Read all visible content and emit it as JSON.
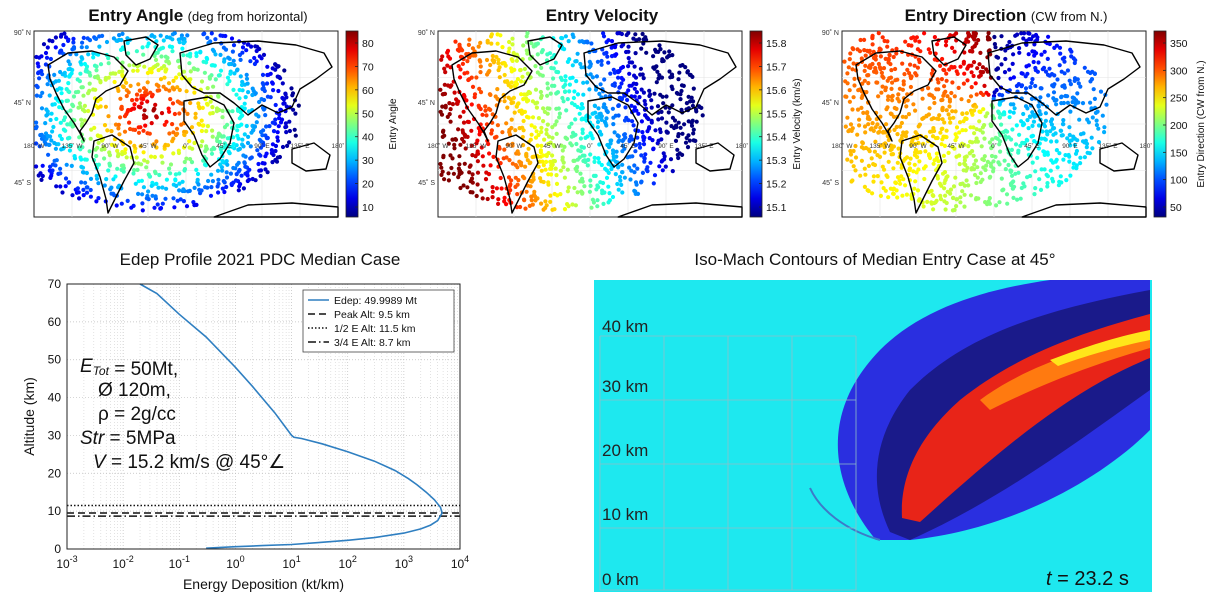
{
  "maps": [
    {
      "key": "angle",
      "title": "Entry Angle",
      "subtitle": "(deg from horizontal)",
      "colorbar_label": "Entry Angle",
      "colorbar_ticks": [
        "80",
        "70",
        "60",
        "50",
        "40",
        "30",
        "20",
        "10"
      ],
      "lat_labels": [
        "90˚ N",
        "45˚ N",
        "45˚ S"
      ],
      "lon_labels": [
        "180˚ W",
        "135˚ W",
        "90˚ W",
        "45˚ W",
        "0˚",
        "45˚ E",
        "90˚ E",
        "135˚ E",
        "180˚"
      ],
      "colormap": "jet",
      "colors": {
        "hot": "#b50000",
        "cold": "#0a0aa8"
      }
    },
    {
      "key": "velocity",
      "title": "Entry Velocity",
      "subtitle": "",
      "colorbar_label": "Entry Velocity (km/s)",
      "colorbar_ticks": [
        "15.8",
        "15.7",
        "15.6",
        "15.5",
        "15.4",
        "15.3",
        "15.2",
        "15.1"
      ],
      "lat_labels": [
        "90˚ N",
        "45˚ N",
        "45˚ S"
      ],
      "lon_labels": [
        "180˚ W",
        "135˚ W",
        "90˚ W",
        "45˚ W",
        "0˚",
        "45˚ E",
        "90˚ E",
        "135˚ E",
        "180˚"
      ],
      "colormap": "jet",
      "colors": {
        "hot": "#9b0000",
        "cold": "#0000a0"
      }
    },
    {
      "key": "direction",
      "title": "Entry Direction",
      "subtitle": "(CW from N.)",
      "colorbar_label": "Entry Direction (CW from N.)",
      "colorbar_ticks": [
        "350",
        "300",
        "250",
        "200",
        "150",
        "100",
        "50"
      ],
      "lat_labels": [
        "90˚ N",
        "45˚ N",
        "45˚ S"
      ],
      "lon_labels": [
        "180˚ W",
        "135˚ W",
        "90˚ W",
        "45˚ W",
        "0˚",
        "45˚ E",
        "90˚ E",
        "135˚ E",
        "180˚"
      ],
      "colormap": "jet",
      "colors": {
        "hot": "#a00000",
        "cold": "#0000a0"
      }
    }
  ],
  "edep": {
    "title": "Edep Profile 2021 PDC Median Case",
    "legend": [
      {
        "label": "Edep: 49.9989 Mt",
        "style": "solid"
      },
      {
        "label": "Peak Alt: 9.5 km",
        "style": "dashed"
      },
      {
        "label": "1/2 E Alt: 11.5 km",
        "style": "dotted"
      },
      {
        "label": "3/4 E Alt: 8.7 km",
        "style": "dashdot"
      }
    ],
    "annotation": {
      "etot_sym": "E",
      "etot_sub": "Tot",
      "etot_val": " = 50Mt,",
      "diam": "Ø 120m,",
      "rho": "ρ = 2g/cc",
      "str_sym": "Str",
      "str_val": " = 5MPa",
      "v_sym": "V",
      "v_val": " = 15.2 km/s @ 45°∠"
    },
    "colors": {
      "line": "#2f7fc1",
      "refline": "#111111"
    }
  },
  "chart_data": [
    {
      "type": "line",
      "title": "Edep Profile 2021 PDC Median Case",
      "xlabel": "Energy Deposition (kt/km)",
      "ylabel": "Altitude (km)",
      "xscale": "log",
      "xlim": [
        0.001,
        10000
      ],
      "ylim": [
        0,
        70
      ],
      "x_ticks": [
        0.001,
        0.01,
        0.1,
        1,
        10,
        100,
        1000,
        10000
      ],
      "x_tick_labels": [
        {
          "base": "10",
          "exp": "-3"
        },
        {
          "base": "10",
          "exp": "-2"
        },
        {
          "base": "10",
          "exp": "-1"
        },
        {
          "base": "10",
          "exp": "0"
        },
        {
          "base": "10",
          "exp": "1"
        },
        {
          "base": "10",
          "exp": "2"
        },
        {
          "base": "10",
          "exp": "3"
        },
        {
          "base": "10",
          "exp": "4"
        }
      ],
      "y_ticks": [
        "0",
        "10",
        "20",
        "30",
        "40",
        "50",
        "60",
        "70"
      ],
      "grid": true,
      "legend_position": "top-right",
      "series": [
        {
          "name": "Edep: 49.9989 Mt",
          "x": [
            0.3,
            1,
            3,
            10,
            30,
            100,
            300,
            1000,
            2000,
            3000,
            4000,
            4800,
            4500,
            3500,
            2500,
            1700,
            1200,
            700,
            300,
            100,
            35,
            15,
            11,
            10,
            5,
            2,
            1,
            0.3,
            0.1,
            0.04,
            0.02
          ],
          "y": [
            0.2,
            0.6,
            0.9,
            1.2,
            1.7,
            2.3,
            3.0,
            4.2,
            5.3,
            6.3,
            7.5,
            9.5,
            11.0,
            13.0,
            15.0,
            17.0,
            18.6,
            20.7,
            23.2,
            25.7,
            27.8,
            29.2,
            29.5,
            30.0,
            36.0,
            43.0,
            48.0,
            56.0,
            62.0,
            67.5,
            70.0
          ]
        }
      ],
      "reference_lines": [
        {
          "name": "Peak Alt: 9.5 km",
          "y": 9.5,
          "style": "dashed"
        },
        {
          "name": "1/2 E Alt: 11.5 km",
          "y": 11.5,
          "style": "dotted"
        },
        {
          "name": "3/4 E Alt: 8.7 km",
          "y": 8.7,
          "style": "dashdot"
        }
      ]
    },
    {
      "type": "heatmap",
      "title": "Iso-Mach Contours of Median Entry Case at 45°",
      "y_tick_labels": [
        "40 km",
        "30 km",
        "20 km",
        "10 km",
        "0 km"
      ],
      "time_label_sym": "t",
      "time_label_val": " = 23.2 s",
      "colors": {
        "background": "#1ee8ef",
        "blue": "#2a2fe0",
        "navy": "#1a1a8a",
        "red": "#e82418",
        "orange": "#ff7a10",
        "yellow": "#ffe61a"
      }
    }
  ]
}
